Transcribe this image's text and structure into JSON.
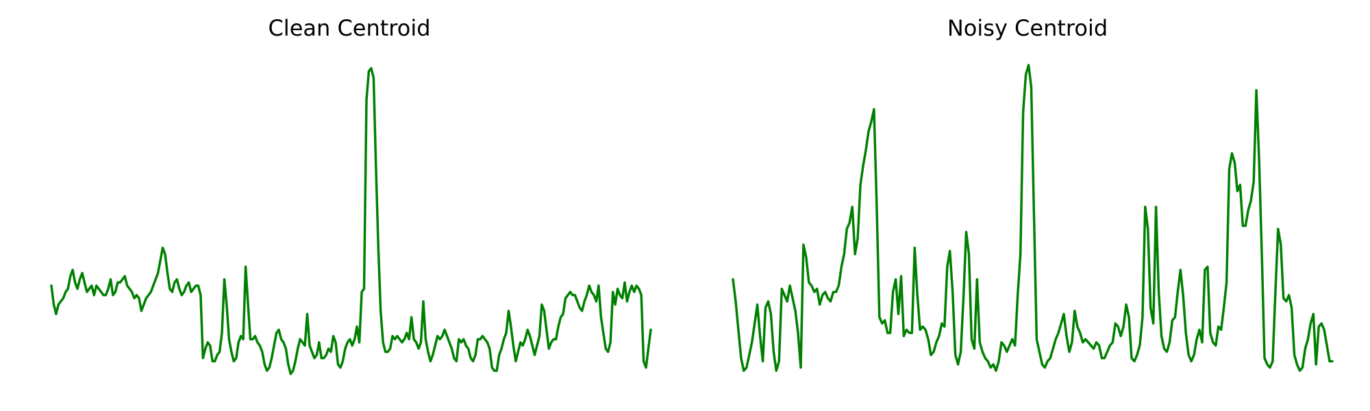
{
  "chart_data": [
    {
      "type": "line",
      "title": "Clean Centroid",
      "xlabel": "",
      "ylabel": "",
      "axes": "off",
      "grid": false,
      "color": "#008000",
      "ylim": [
        0,
        1
      ],
      "xlim": [
        0,
        214
      ],
      "values": [
        0.3,
        0.24,
        0.21,
        0.24,
        0.25,
        0.26,
        0.28,
        0.29,
        0.33,
        0.35,
        0.31,
        0.29,
        0.32,
        0.34,
        0.31,
        0.28,
        0.29,
        0.3,
        0.27,
        0.3,
        0.29,
        0.28,
        0.27,
        0.27,
        0.29,
        0.32,
        0.27,
        0.28,
        0.31,
        0.31,
        0.32,
        0.33,
        0.3,
        0.29,
        0.28,
        0.26,
        0.27,
        0.26,
        0.22,
        0.24,
        0.26,
        0.27,
        0.28,
        0.3,
        0.32,
        0.34,
        0.38,
        0.42,
        0.4,
        0.34,
        0.29,
        0.28,
        0.31,
        0.32,
        0.29,
        0.27,
        0.28,
        0.3,
        0.31,
        0.28,
        0.29,
        0.3,
        0.3,
        0.27,
        0.07,
        0.1,
        0.12,
        0.11,
        0.06,
        0.06,
        0.08,
        0.09,
        0.15,
        0.32,
        0.24,
        0.13,
        0.09,
        0.06,
        0.07,
        0.12,
        0.14,
        0.13,
        0.36,
        0.24,
        0.13,
        0.13,
        0.14,
        0.12,
        0.11,
        0.09,
        0.05,
        0.03,
        0.04,
        0.07,
        0.11,
        0.15,
        0.16,
        0.13,
        0.12,
        0.1,
        0.05,
        0.02,
        0.03,
        0.06,
        0.1,
        0.13,
        0.12,
        0.11,
        0.21,
        0.11,
        0.09,
        0.07,
        0.08,
        0.12,
        0.07,
        0.07,
        0.08,
        0.1,
        0.09,
        0.14,
        0.12,
        0.05,
        0.04,
        0.06,
        0.1,
        0.12,
        0.13,
        0.11,
        0.13,
        0.17,
        0.12,
        0.28,
        0.29,
        0.89,
        0.98,
        0.99,
        0.96,
        0.68,
        0.42,
        0.22,
        0.12,
        0.09,
        0.09,
        0.1,
        0.14,
        0.13,
        0.14,
        0.13,
        0.12,
        0.13,
        0.15,
        0.13,
        0.2,
        0.13,
        0.12,
        0.1,
        0.12,
        0.25,
        0.13,
        0.09,
        0.06,
        0.08,
        0.11,
        0.14,
        0.13,
        0.14,
        0.16,
        0.14,
        0.12,
        0.1,
        0.07,
        0.06,
        0.13,
        0.12,
        0.13,
        0.11,
        0.1,
        0.07,
        0.06,
        0.08,
        0.13,
        0.13,
        0.14,
        0.13,
        0.12,
        0.1,
        0.04,
        0.03,
        0.03,
        0.08,
        0.1,
        0.13,
        0.15,
        0.22,
        0.17,
        0.11,
        0.06,
        0.09,
        0.12,
        0.11,
        0.13,
        0.16,
        0.14,
        0.11,
        0.08,
        0.11,
        0.14,
        0.24,
        0.22,
        0.16,
        0.1,
        0.12,
        0.13,
        0.13,
        0.17,
        0.2,
        0.21,
        0.26,
        0.27,
        0.28,
        0.27,
        0.27,
        0.25,
        0.23,
        0.22,
        0.25,
        0.27,
        0.3,
        0.28,
        0.27,
        0.25,
        0.3,
        0.2,
        0.15,
        0.1,
        0.09,
        0.12,
        0.28,
        0.24,
        0.29,
        0.27,
        0.26,
        0.31,
        0.25,
        0.28,
        0.3,
        0.28,
        0.3,
        0.29,
        0.27,
        0.06,
        0.04,
        0.1,
        0.16
      ]
    },
    {
      "type": "line",
      "title": "Noisy Centroid",
      "xlabel": "",
      "ylabel": "",
      "axes": "off",
      "grid": false,
      "color": "#008000",
      "ylim": [
        0,
        1
      ],
      "xlim": [
        0,
        214
      ],
      "values": [
        0.32,
        0.25,
        0.16,
        0.07,
        0.03,
        0.04,
        0.08,
        0.12,
        0.18,
        0.24,
        0.14,
        0.06,
        0.23,
        0.25,
        0.21,
        0.09,
        0.03,
        0.06,
        0.29,
        0.27,
        0.25,
        0.3,
        0.26,
        0.22,
        0.15,
        0.04,
        0.43,
        0.39,
        0.31,
        0.3,
        0.28,
        0.29,
        0.24,
        0.27,
        0.28,
        0.26,
        0.25,
        0.28,
        0.28,
        0.3,
        0.36,
        0.4,
        0.48,
        0.5,
        0.55,
        0.4,
        0.45,
        0.62,
        0.68,
        0.73,
        0.79,
        0.82,
        0.86,
        0.56,
        0.2,
        0.18,
        0.19,
        0.15,
        0.15,
        0.28,
        0.32,
        0.21,
        0.33,
        0.14,
        0.16,
        0.15,
        0.15,
        0.42,
        0.27,
        0.16,
        0.17,
        0.16,
        0.13,
        0.08,
        0.09,
        0.12,
        0.14,
        0.18,
        0.17,
        0.36,
        0.41,
        0.28,
        0.08,
        0.05,
        0.09,
        0.26,
        0.47,
        0.4,
        0.13,
        0.1,
        0.32,
        0.12,
        0.09,
        0.07,
        0.06,
        0.04,
        0.05,
        0.03,
        0.06,
        0.12,
        0.11,
        0.09,
        0.11,
        0.13,
        0.11,
        0.27,
        0.4,
        0.85,
        0.97,
        1.0,
        0.93,
        0.52,
        0.13,
        0.09,
        0.05,
        0.04,
        0.06,
        0.07,
        0.1,
        0.13,
        0.15,
        0.18,
        0.21,
        0.14,
        0.09,
        0.12,
        0.22,
        0.17,
        0.15,
        0.12,
        0.13,
        0.12,
        0.11,
        0.1,
        0.12,
        0.11,
        0.07,
        0.07,
        0.09,
        0.11,
        0.12,
        0.18,
        0.17,
        0.14,
        0.17,
        0.24,
        0.2,
        0.07,
        0.06,
        0.08,
        0.11,
        0.2,
        0.55,
        0.48,
        0.23,
        0.18,
        0.55,
        0.28,
        0.14,
        0.1,
        0.09,
        0.12,
        0.19,
        0.2,
        0.28,
        0.35,
        0.27,
        0.15,
        0.08,
        0.06,
        0.08,
        0.13,
        0.16,
        0.12,
        0.35,
        0.36,
        0.15,
        0.12,
        0.11,
        0.17,
        0.16,
        0.23,
        0.31,
        0.67,
        0.72,
        0.69,
        0.6,
        0.62,
        0.49,
        0.49,
        0.54,
        0.57,
        0.63,
        0.92,
        0.7,
        0.4,
        0.07,
        0.05,
        0.04,
        0.06,
        0.28,
        0.48,
        0.43,
        0.26,
        0.25,
        0.27,
        0.23,
        0.08,
        0.05,
        0.03,
        0.04,
        0.1,
        0.13,
        0.18,
        0.21,
        0.05,
        0.17,
        0.18,
        0.16,
        0.11,
        0.06,
        0.06
      ]
    }
  ]
}
